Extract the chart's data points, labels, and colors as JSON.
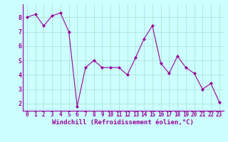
{
  "x": [
    0,
    1,
    2,
    3,
    4,
    5,
    6,
    7,
    8,
    9,
    10,
    11,
    12,
    13,
    14,
    15,
    16,
    17,
    18,
    19,
    20,
    21,
    22,
    23
  ],
  "y": [
    8.0,
    8.2,
    7.4,
    8.1,
    8.3,
    7.0,
    1.8,
    4.5,
    5.0,
    4.5,
    4.5,
    4.5,
    4.0,
    5.2,
    6.5,
    7.4,
    4.8,
    4.1,
    5.3,
    4.5,
    4.1,
    3.0,
    3.4,
    2.1
  ],
  "line_color": "#990099",
  "marker": "D",
  "markersize": 2.0,
  "linewidth": 0.8,
  "xlabel": "Windchill (Refroidissement éolien,°C)",
  "xlabel_fontsize": 6.5,
  "xlabel_color": "#990099",
  "ylabel_ticks": [
    2,
    3,
    4,
    5,
    6,
    7,
    8
  ],
  "ylim": [
    1.5,
    8.9
  ],
  "xlim": [
    -0.5,
    23.5
  ],
  "bg_color": "#ccffff",
  "grid_color": "#aaddcc",
  "tick_fontsize": 5.5,
  "tick_color": "#990099",
  "spine_color": "#990099",
  "xtick_labels": [
    "0",
    "1",
    "2",
    "3",
    "4",
    "5",
    "6",
    "7",
    "8",
    "9",
    "10",
    "11",
    "12",
    "13",
    "14",
    "15",
    "16",
    "17",
    "18",
    "19",
    "20",
    "21",
    "22",
    "23"
  ]
}
